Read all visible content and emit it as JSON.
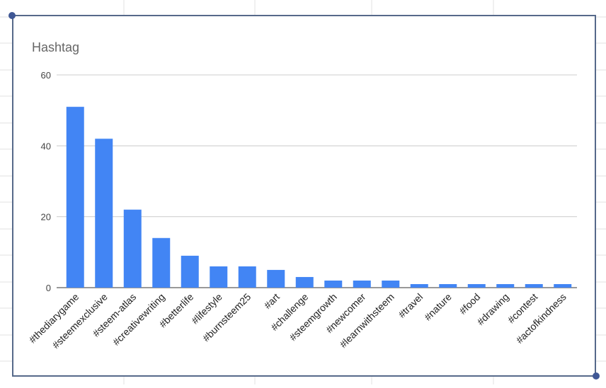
{
  "chart_data": {
    "type": "bar",
    "title": "Hashtag",
    "categories": [
      "#thediarygame",
      "#steemexclusive",
      "#steem-atlas",
      "#creativewriting",
      "#betterlife",
      "#lifestyle",
      "#burnsteem25",
      "#art",
      "#challenge",
      "#steemgrowth",
      "#newcomer",
      "#learnwithsteem",
      "#travel",
      "#nature",
      "#food",
      "#drawing",
      "#contest",
      "#actofkindness"
    ],
    "values": [
      51,
      42,
      22,
      14,
      9,
      6,
      6,
      5,
      3,
      2,
      2,
      2,
      1,
      1,
      1,
      1,
      1,
      1
    ],
    "color": "#4285f4",
    "ylim": [
      0,
      60
    ],
    "yticks": [
      0,
      20,
      40,
      60
    ],
    "grid": true
  }
}
